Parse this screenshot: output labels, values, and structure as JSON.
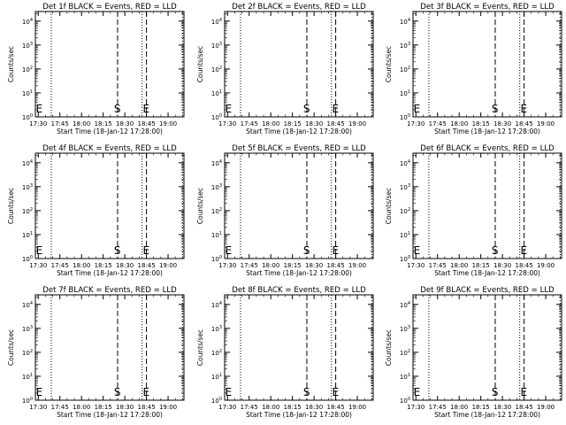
{
  "figure": {
    "xlabel": "Start Time (18-Jan-12 17:28:00)",
    "ylabel": "Counts/sec"
  },
  "axis": {
    "x_ticks": [
      "17:30",
      "17:45",
      "18:00",
      "18:15",
      "18:30",
      "18:45",
      "19:00"
    ],
    "x_tick_minutes": [
      2,
      17,
      32,
      47,
      62,
      77,
      92
    ],
    "x_range_minutes": [
      0,
      103
    ],
    "y_ticks": [
      {
        "base": "10",
        "exp": "0"
      },
      {
        "base": "10",
        "exp": "1"
      },
      {
        "base": "10",
        "exp": "2"
      },
      {
        "base": "10",
        "exp": "3"
      },
      {
        "base": "10",
        "exp": "4"
      }
    ],
    "y_scale": "log",
    "y_range_exp": [
      0,
      4.4
    ]
  },
  "markers": {
    "dotted_minutes": [
      0,
      11,
      74,
      102
    ],
    "dashed_minutes": [
      57,
      77
    ],
    "labels": [
      {
        "text": "E",
        "minute": 0.4
      },
      {
        "text": "S",
        "minute": 54.5
      },
      {
        "text": "E",
        "minute": 74.5
      }
    ]
  },
  "chart_data": [
    {
      "type": "line",
      "title": "Det 1f BLACK = Events, RED = LLD",
      "series": [],
      "xlabel": "Start Time (18-Jan-12 17:28:00)",
      "ylabel": "Counts/sec"
    },
    {
      "type": "line",
      "title": "Det 2f BLACK = Events, RED = LLD",
      "series": [],
      "xlabel": "Start Time (18-Jan-12 17:28:00)",
      "ylabel": "Counts/sec"
    },
    {
      "type": "line",
      "title": "Det 3f BLACK = Events, RED = LLD",
      "series": [],
      "xlabel": "Start Time (18-Jan-12 17:28:00)",
      "ylabel": "Counts/sec"
    },
    {
      "type": "line",
      "title": "Det 4f BLACK = Events, RED = LLD",
      "series": [],
      "xlabel": "Start Time (18-Jan-12 17:28:00)",
      "ylabel": "Counts/sec"
    },
    {
      "type": "line",
      "title": "Det 5f BLACK = Events, RED = LLD",
      "series": [],
      "xlabel": "Start Time (18-Jan-12 17:28:00)",
      "ylabel": "Counts/sec"
    },
    {
      "type": "line",
      "title": "Det 6f BLACK = Events, RED = LLD",
      "series": [],
      "xlabel": "Start Time (18-Jan-12 17:28:00)",
      "ylabel": "Counts/sec"
    },
    {
      "type": "line",
      "title": "Det 7f BLACK = Events, RED = LLD",
      "series": [],
      "xlabel": "Start Time (18-Jan-12 17:28:00)",
      "ylabel": "Counts/sec"
    },
    {
      "type": "line",
      "title": "Det 8f BLACK = Events, RED = LLD",
      "series": [],
      "xlabel": "Start Time (18-Jan-12 17:28:00)",
      "ylabel": "Counts/sec"
    },
    {
      "type": "line",
      "title": "Det 9f BLACK = Events, RED = LLD",
      "series": [],
      "xlabel": "Start Time (18-Jan-12 17:28:00)",
      "ylabel": "Counts/sec"
    }
  ]
}
